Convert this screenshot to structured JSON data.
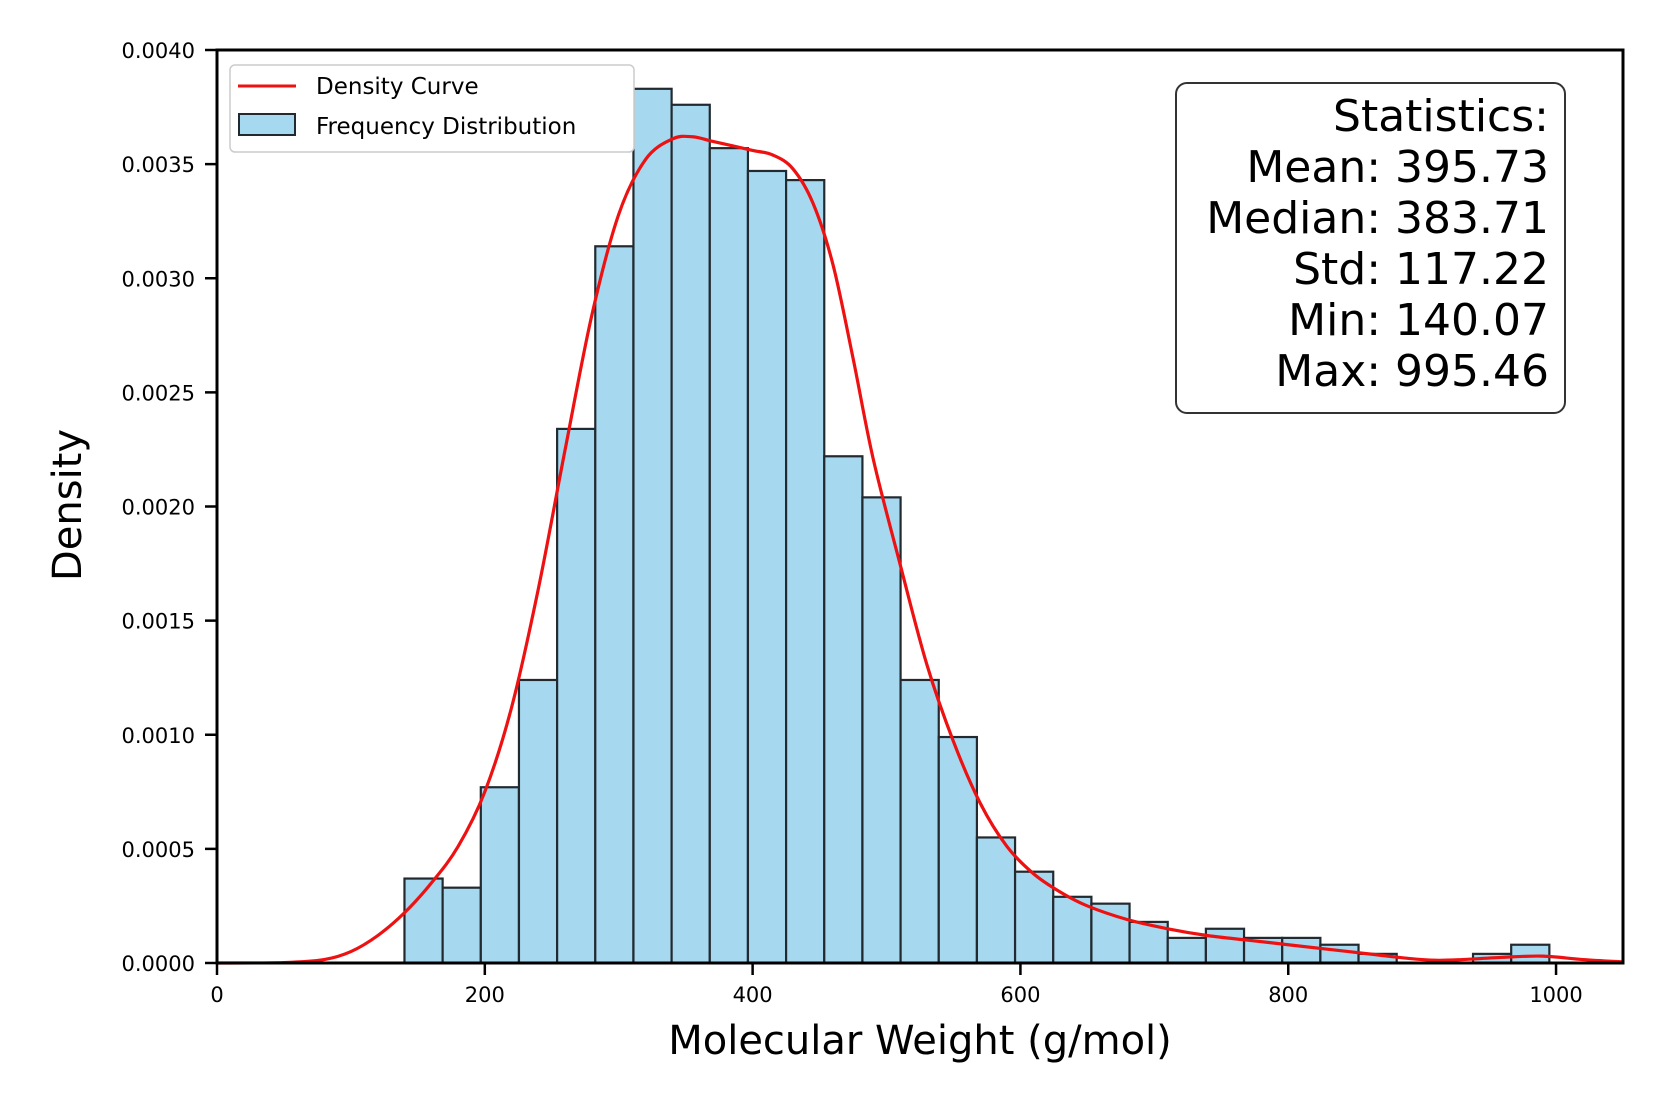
{
  "chart_data": {
    "type": "bar",
    "title": "",
    "xlabel": "Molecular Weight (g/mol)",
    "ylabel": "Density",
    "xlim": [
      0,
      1050
    ],
    "ylim": [
      0,
      0.004
    ],
    "grid": false,
    "x_ticks": [
      0,
      200,
      400,
      600,
      800,
      1000
    ],
    "x_tick_labels": [
      "0",
      "200",
      "400",
      "600",
      "800",
      "1000"
    ],
    "y_ticks": [
      0,
      0.0005,
      0.001,
      0.0015,
      0.002,
      0.0025,
      0.003,
      0.0035,
      0.004
    ],
    "y_tick_labels": [
      "0.0000",
      "0.0005",
      "0.0010",
      "0.0015",
      "0.0020",
      "0.0025",
      "0.0030",
      "0.0035",
      "0.0040"
    ],
    "histogram": {
      "name": "Frequency Distribution",
      "color": "#a6d8ef",
      "edgecolor": "#222a30",
      "bin_edges": [
        140,
        168.5,
        197,
        225.5,
        254,
        282.5,
        311,
        339.5,
        368,
        396.5,
        425,
        453.5,
        482,
        510.5,
        539,
        567.5,
        596,
        624.5,
        653,
        681.5,
        710,
        738.5,
        767,
        795.5,
        824,
        852.5,
        881,
        909.5,
        938,
        966.5,
        995
      ],
      "values": [
        0.00037,
        0.00033,
        0.00077,
        0.00124,
        0.00234,
        0.00314,
        0.00383,
        0.00376,
        0.00357,
        0.00347,
        0.00343,
        0.00222,
        0.00204,
        0.00124,
        0.00099,
        0.00055,
        0.0004,
        0.00029,
        0.00026,
        0.00018,
        0.00011,
        0.00015,
        0.00011,
        0.00011,
        8e-05,
        4e-05,
        0.0,
        0.0,
        4e-05,
        8e-05
      ]
    },
    "density_curve": {
      "name": "Density Curve",
      "color": "#ee1111",
      "x": [
        0,
        50,
        80,
        100,
        120,
        140,
        160,
        180,
        200,
        220,
        240,
        260,
        280,
        300,
        320,
        340,
        355,
        370,
        385,
        400,
        415,
        430,
        445,
        460,
        475,
        490,
        510,
        530,
        550,
        570,
        590,
        610,
        630,
        650,
        680,
        710,
        740,
        770,
        800,
        830,
        860,
        890,
        910,
        930,
        960,
        990,
        1020,
        1050
      ],
      "y": [
        0.0,
        2e-06,
        1.5e-05,
        5e-05,
        0.00012,
        0.00022,
        0.00035,
        0.00051,
        0.00075,
        0.00112,
        0.00164,
        0.00225,
        0.00284,
        0.00328,
        0.00352,
        0.00361,
        0.00362,
        0.0036,
        0.00358,
        0.00356,
        0.00354,
        0.00348,
        0.00333,
        0.00306,
        0.00265,
        0.00221,
        0.00175,
        0.00131,
        0.00097,
        0.0007,
        0.00051,
        0.00039,
        0.00031,
        0.00025,
        0.00019,
        0.00015,
        0.00012,
        0.0001,
        8e-05,
        6e-05,
        4e-05,
        2e-05,
        1.2e-05,
        1.5e-05,
        2.5e-05,
        3e-05,
        1.5e-05,
        5e-06
      ]
    },
    "legend": {
      "position": "upper-left",
      "entries": [
        "Density Curve",
        "Frequency Distribution"
      ]
    },
    "stats_box": {
      "position": "upper-right",
      "lines": [
        "Statistics:",
        "Mean: 395.73",
        "Median: 383.71",
        "Std: 117.22",
        "Min: 140.07",
        "Max: 995.46"
      ]
    }
  }
}
